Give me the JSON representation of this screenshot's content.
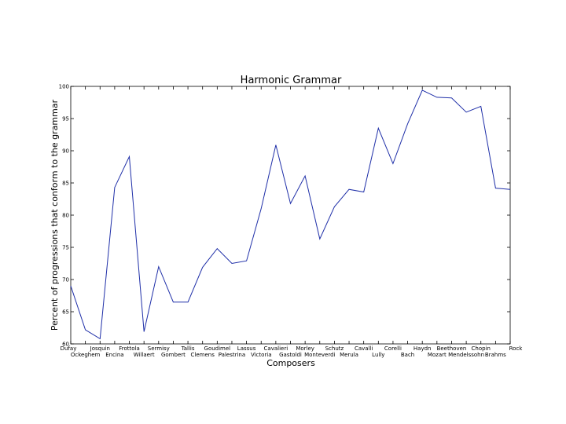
{
  "chart_data": {
    "type": "line",
    "title": "Harmonic Grammar",
    "xlabel": "Composers",
    "ylabel": "Percent of progressions that conform to the grammar",
    "ylim": [
      60,
      100
    ],
    "yticks": [
      60,
      65,
      70,
      75,
      80,
      85,
      90,
      95,
      100
    ],
    "grid": false,
    "line_color": "#1f2fa8",
    "categories": [
      "Dufay",
      "Ockeghem",
      "Josquin",
      "Encina",
      "Frottola",
      "Willaert",
      "Sermisy",
      "Gombert",
      "Tallis",
      "Clemens",
      "Goudimel",
      "Palestrina",
      "Lassus",
      "Victoria",
      "Cavalieri",
      "Gastoldi",
      "Morley",
      "Monteverdi",
      "Schutz",
      "Merula",
      "Cavalli",
      "Lully",
      "Corelli",
      "Bach",
      "Haydn",
      "Mozart",
      "Beethoven",
      "Mendelssohn",
      "Chopin",
      "Brahms",
      "Rock"
    ],
    "values": [
      69,
      62.2,
      60.8,
      84.3,
      89.1,
      61.9,
      72.0,
      66.5,
      66.5,
      71.9,
      74.8,
      72.5,
      72.9,
      81.0,
      90.9,
      81.8,
      86.1,
      76.3,
      81.3,
      84.0,
      83.6,
      93.5,
      88.0,
      94.2,
      99.4,
      98.3,
      98.2,
      96.0,
      96.9,
      84.2,
      84.0
    ]
  }
}
